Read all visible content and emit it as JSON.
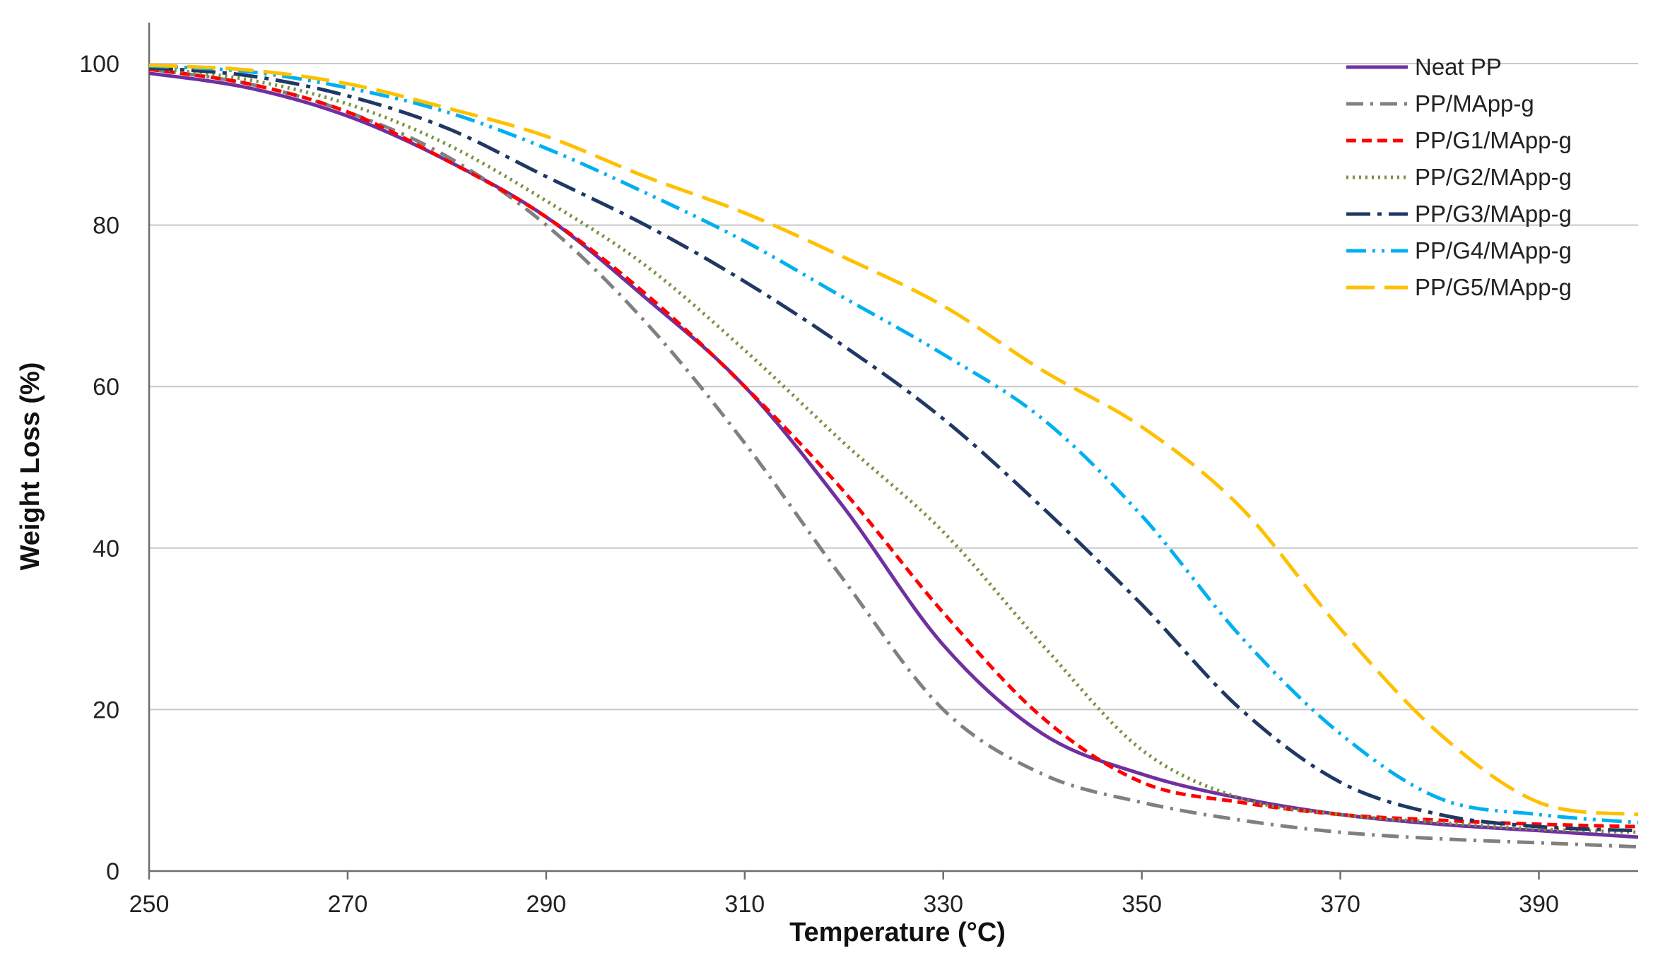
{
  "chart_data": {
    "type": "line",
    "title": "",
    "xlabel": "Temperature (°C)",
    "ylabel": "Weight Loss (%)",
    "xlim": [
      250,
      400
    ],
    "ylim": [
      0,
      100
    ],
    "x_ticks": [
      "250",
      "270",
      "290",
      "310",
      "330",
      "350",
      "370",
      "390"
    ],
    "y_ticks": [
      "0",
      "20",
      "40",
      "60",
      "80",
      "100"
    ],
    "grid": true,
    "legend_position": "top-right",
    "x": [
      250,
      260,
      270,
      280,
      290,
      300,
      310,
      320,
      330,
      340,
      350,
      360,
      370,
      380,
      390,
      400
    ],
    "series": [
      {
        "name": "Neat PP",
        "color": "#7030A0",
        "dash": "solid",
        "values": [
          98.8,
          97,
          93.5,
          88,
          81,
          71,
          60,
          45,
          28,
          17,
          12,
          9,
          7,
          5.8,
          5,
          4.2
        ]
      },
      {
        "name": "PP/MApp-g",
        "color": "#808080",
        "dash": "dash-dot",
        "values": [
          99.3,
          97.5,
          94,
          88.5,
          80,
          68,
          53,
          36,
          20,
          12,
          8.5,
          6.3,
          4.8,
          4,
          3.5,
          3
        ]
      },
      {
        "name": "PP/G1/MApp-g",
        "color": "#FF0000",
        "dash": "short-dash",
        "values": [
          99.3,
          97.5,
          94,
          88,
          81,
          71.5,
          60,
          47,
          32,
          19,
          11,
          8.5,
          7,
          6.3,
          5.8,
          5.5
        ]
      },
      {
        "name": "PP/G2/MApp-g",
        "color": "#77933C",
        "dash": "dotted",
        "values": [
          99.5,
          98,
          95,
          90,
          83,
          75,
          64.5,
          53,
          42,
          28,
          15,
          9,
          7,
          6,
          5.2,
          4.8
        ]
      },
      {
        "name": "PP/G3/MApp-g",
        "color": "#1F3864",
        "dash": "long-dash-dot",
        "values": [
          99.5,
          98.5,
          96,
          92,
          86,
          80,
          73,
          65,
          56,
          45,
          33,
          20,
          11,
          7,
          5.5,
          5
        ]
      },
      {
        "name": "PP/G4/MApp-g",
        "color": "#00B0F0",
        "dash": "dash-dot-dot",
        "values": [
          99.7,
          99,
          97,
          94,
          89.5,
          84,
          78,
          71,
          64,
          56,
          44,
          29,
          17,
          9,
          7,
          6
        ]
      },
      {
        "name": "PP/G5/MApp-g",
        "color": "#FFC000",
        "dash": "long-dash",
        "values": [
          99.8,
          99.2,
          97.5,
          94.5,
          91,
          86,
          81.5,
          76,
          70,
          62,
          55,
          45,
          30,
          17,
          8.5,
          7
        ]
      }
    ]
  }
}
